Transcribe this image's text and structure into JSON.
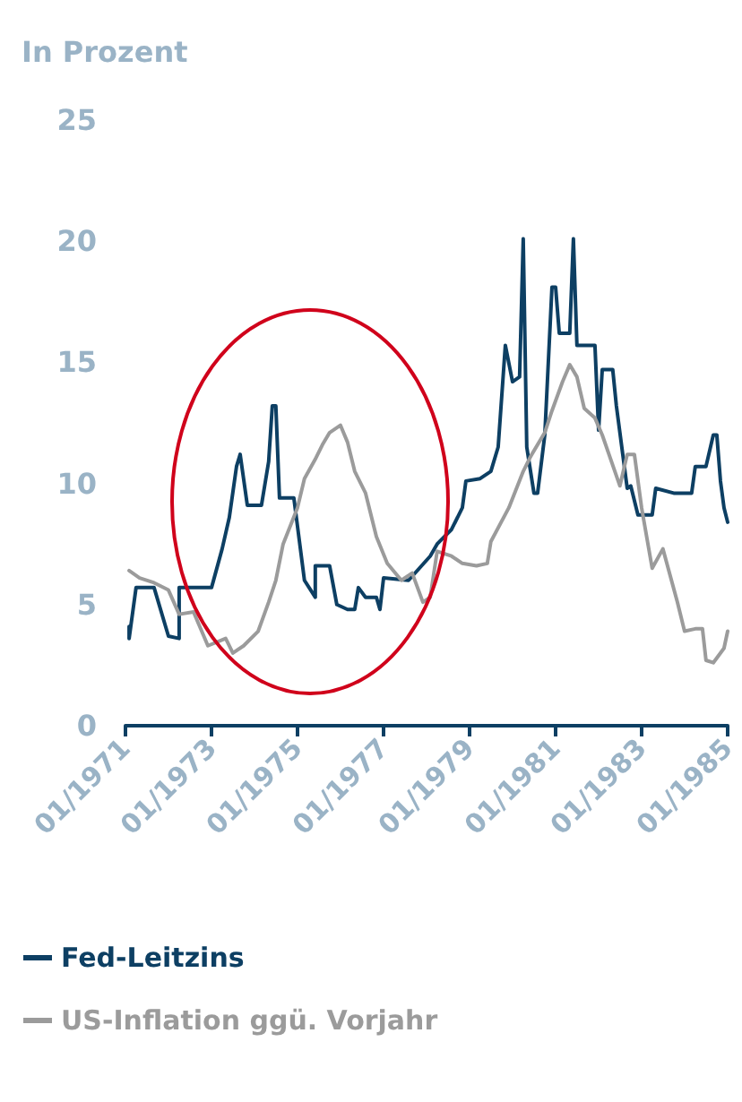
{
  "chart_data": {
    "type": "line",
    "ylabel": "In Prozent",
    "xlim": [
      "1971-01",
      "1985-01"
    ],
    "xticks": [
      {
        "value": "1971-01",
        "label": "01/1971"
      },
      {
        "value": "1973-01",
        "label": "01/1973"
      },
      {
        "value": "1975-01",
        "label": "01/1975"
      },
      {
        "value": "1977-01",
        "label": "01/1977"
      },
      {
        "value": "1979-01",
        "label": "01/1979"
      },
      {
        "value": "1981-01",
        "label": "01/1981"
      },
      {
        "value": "1983-01",
        "label": "01/1983"
      },
      {
        "value": "1985-01",
        "label": "01/1985"
      }
    ],
    "ylim": [
      0,
      25
    ],
    "yticks": [
      0,
      5,
      10,
      15,
      20,
      25
    ],
    "grid": false,
    "legend": "bottom left",
    "marker": "none",
    "line_style": "solid",
    "series": [
      {
        "name": "Fed-Leitzins",
        "color": "#0d3f63",
        "x": [
          "1971-02",
          "1971-02",
          "1971-04",
          "1971-09",
          "1972-01",
          "1972-04",
          "1972-04",
          "1973-01",
          "1973-04",
          "1973-06",
          "1973-08",
          "1973-09",
          "1973-11",
          "1974-03",
          "1974-05",
          "1974-06",
          "1974-07",
          "1974-08",
          "1974-12",
          "1975-03",
          "1975-06",
          "1975-06",
          "1975-10",
          "1975-12",
          "1976-03",
          "1976-05",
          "1976-06",
          "1976-08",
          "1976-11",
          "1976-12",
          "1977-01",
          "1977-08",
          "1977-11",
          "1978-02",
          "1978-04",
          "1978-08",
          "1978-11",
          "1978-12",
          "1979-04",
          "1979-07",
          "1979-09",
          "1979-11",
          "1980-01",
          "1980-03",
          "1980-04",
          "1980-05",
          "1980-07",
          "1980-08",
          "1980-10",
          "1980-12",
          "1981-01",
          "1981-02",
          "1981-05",
          "1981-06",
          "1981-07",
          "1981-12",
          "1982-01",
          "1982-02",
          "1982-05",
          "1982-06",
          "1982-09",
          "1982-10",
          "1982-12",
          "1983-04",
          "1983-05",
          "1983-10",
          "1984-03",
          "1984-04",
          "1984-07",
          "1984-09",
          "1984-10",
          "1984-11",
          "1984-12",
          "1985-01"
        ],
        "values": [
          4.1,
          3.6,
          5.7,
          5.7,
          3.7,
          3.6,
          5.7,
          5.7,
          7.3,
          8.6,
          10.7,
          11.2,
          9.1,
          9.1,
          10.9,
          13.2,
          13.2,
          9.4,
          9.4,
          6.0,
          5.3,
          6.6,
          6.6,
          5.0,
          4.8,
          4.8,
          5.7,
          5.3,
          5.3,
          4.8,
          6.1,
          6.0,
          6.5,
          7.0,
          7.5,
          8.1,
          9.0,
          10.1,
          10.2,
          10.5,
          11.5,
          15.7,
          14.2,
          14.4,
          20.1,
          11.5,
          9.6,
          9.6,
          12.0,
          18.1,
          18.1,
          16.2,
          16.2,
          20.1,
          15.7,
          15.7,
          12.2,
          14.7,
          14.7,
          13.2,
          9.8,
          9.9,
          8.7,
          8.7,
          9.8,
          9.6,
          9.6,
          10.7,
          10.7,
          12.0,
          12.0,
          10.1,
          9.0,
          8.4
        ]
      },
      {
        "name": "US-Inflation ggü. Vorjahr",
        "color": "#9b9b9b",
        "x": [
          "1971-02",
          "1971-05",
          "1971-09",
          "1972-01",
          "1972-04",
          "1972-08",
          "1972-12",
          "1973-05",
          "1973-07",
          "1973-10",
          "1974-02",
          "1974-05",
          "1974-07",
          "1974-09",
          "1975-01",
          "1975-03",
          "1975-06",
          "1975-08",
          "1975-10",
          "1976-01",
          "1976-03",
          "1976-05",
          "1976-08",
          "1976-11",
          "1977-02",
          "1977-06",
          "1977-09",
          "1977-12",
          "1978-02",
          "1978-04",
          "1978-08",
          "1978-11",
          "1979-03",
          "1979-06",
          "1979-07",
          "1979-12",
          "1980-04",
          "1980-06",
          "1980-10",
          "1980-12",
          "1981-03",
          "1981-05",
          "1981-07",
          "1981-09",
          "1981-12",
          "1982-02",
          "1982-07",
          "1982-09",
          "1982-11",
          "1983-01",
          "1983-04",
          "1983-07",
          "1983-11",
          "1984-01",
          "1984-04",
          "1984-06",
          "1984-07",
          "1984-09",
          "1984-12",
          "1985-01"
        ],
        "values": [
          6.4,
          6.1,
          5.9,
          5.6,
          4.6,
          4.7,
          3.3,
          3.6,
          3.0,
          3.3,
          3.9,
          5.1,
          6.0,
          7.5,
          9.0,
          10.2,
          11.0,
          11.6,
          12.1,
          12.4,
          11.7,
          10.5,
          9.6,
          7.8,
          6.7,
          6.0,
          6.3,
          5.1,
          5.3,
          7.2,
          7.0,
          6.7,
          6.6,
          6.7,
          7.6,
          9.0,
          10.5,
          11.1,
          12.1,
          13.0,
          14.2,
          14.9,
          14.4,
          13.1,
          12.7,
          12.0,
          9.9,
          11.2,
          11.2,
          9.0,
          6.5,
          7.3,
          5.1,
          3.9,
          4.0,
          4.0,
          2.7,
          2.6,
          3.2,
          3.9
        ]
      }
    ]
  }
}
